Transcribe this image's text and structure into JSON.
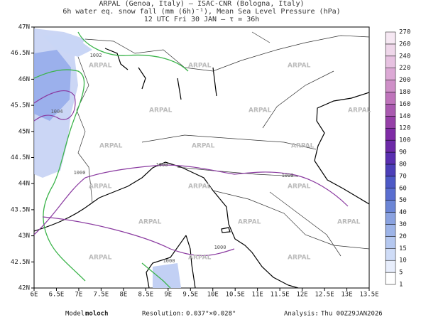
{
  "header": {
    "line1": "ARPAL (Genoa, Italy)  —  ISAC-CNR (Bologna, Italy)",
    "line2": "6h water eq. snow fall (mm (6h)⁻¹), Mean Sea Level Pressure (hPa)",
    "line3": "12 UTC Fri 30 JAN  —  τ = 36h"
  },
  "map": {
    "lat_labels": [
      "47N",
      "46.5N",
      "46N",
      "45.5N",
      "45N",
      "44.5N",
      "44N",
      "43.5N",
      "43N",
      "42.5N",
      "42N"
    ],
    "lon_labels": [
      "6E",
      "6.5E",
      "7E",
      "7.5E",
      "8E",
      "8.5E",
      "9E",
      "9.5E",
      "10E",
      "10.5E",
      "11E",
      "11.5E",
      "12E",
      "12.5E",
      "13E",
      "13.5E"
    ],
    "watermark": "ARPAL",
    "isobar_labels": [
      "1002",
      "1004",
      "1000",
      "1000",
      "1000",
      "1000",
      "1000"
    ]
  },
  "colorbar": {
    "labels": [
      "1",
      "5",
      "10",
      "15",
      "20",
      "30",
      "40",
      "50",
      "60",
      "70",
      "80",
      "90",
      "100",
      "120",
      "140",
      "160",
      "180",
      "200",
      "220",
      "240",
      "260",
      "270"
    ],
    "colors": [
      "#ffffff",
      "#e8eefc",
      "#cfdcf7",
      "#b5c8f0",
      "#9db4e8",
      "#8aa2e0",
      "#6c86d6",
      "#5a6ed0",
      "#4d59c6",
      "#4c3fb8",
      "#5a2fb0",
      "#6d2aa8",
      "#7f2ca6",
      "#9640a8",
      "#aa5ab0",
      "#bf74bb",
      "#cf90c8",
      "#dca9d5",
      "#e7c2e1",
      "#efd7ea",
      "#f6e8f3"
    ]
  },
  "footer": {
    "model_label": "Model:",
    "model": "moloch",
    "res_label": "Resolution:",
    "res": "0.037°×0.028°",
    "analysis_label": "Analysis:",
    "analysis": "Thu  00Z29JAN2026"
  }
}
